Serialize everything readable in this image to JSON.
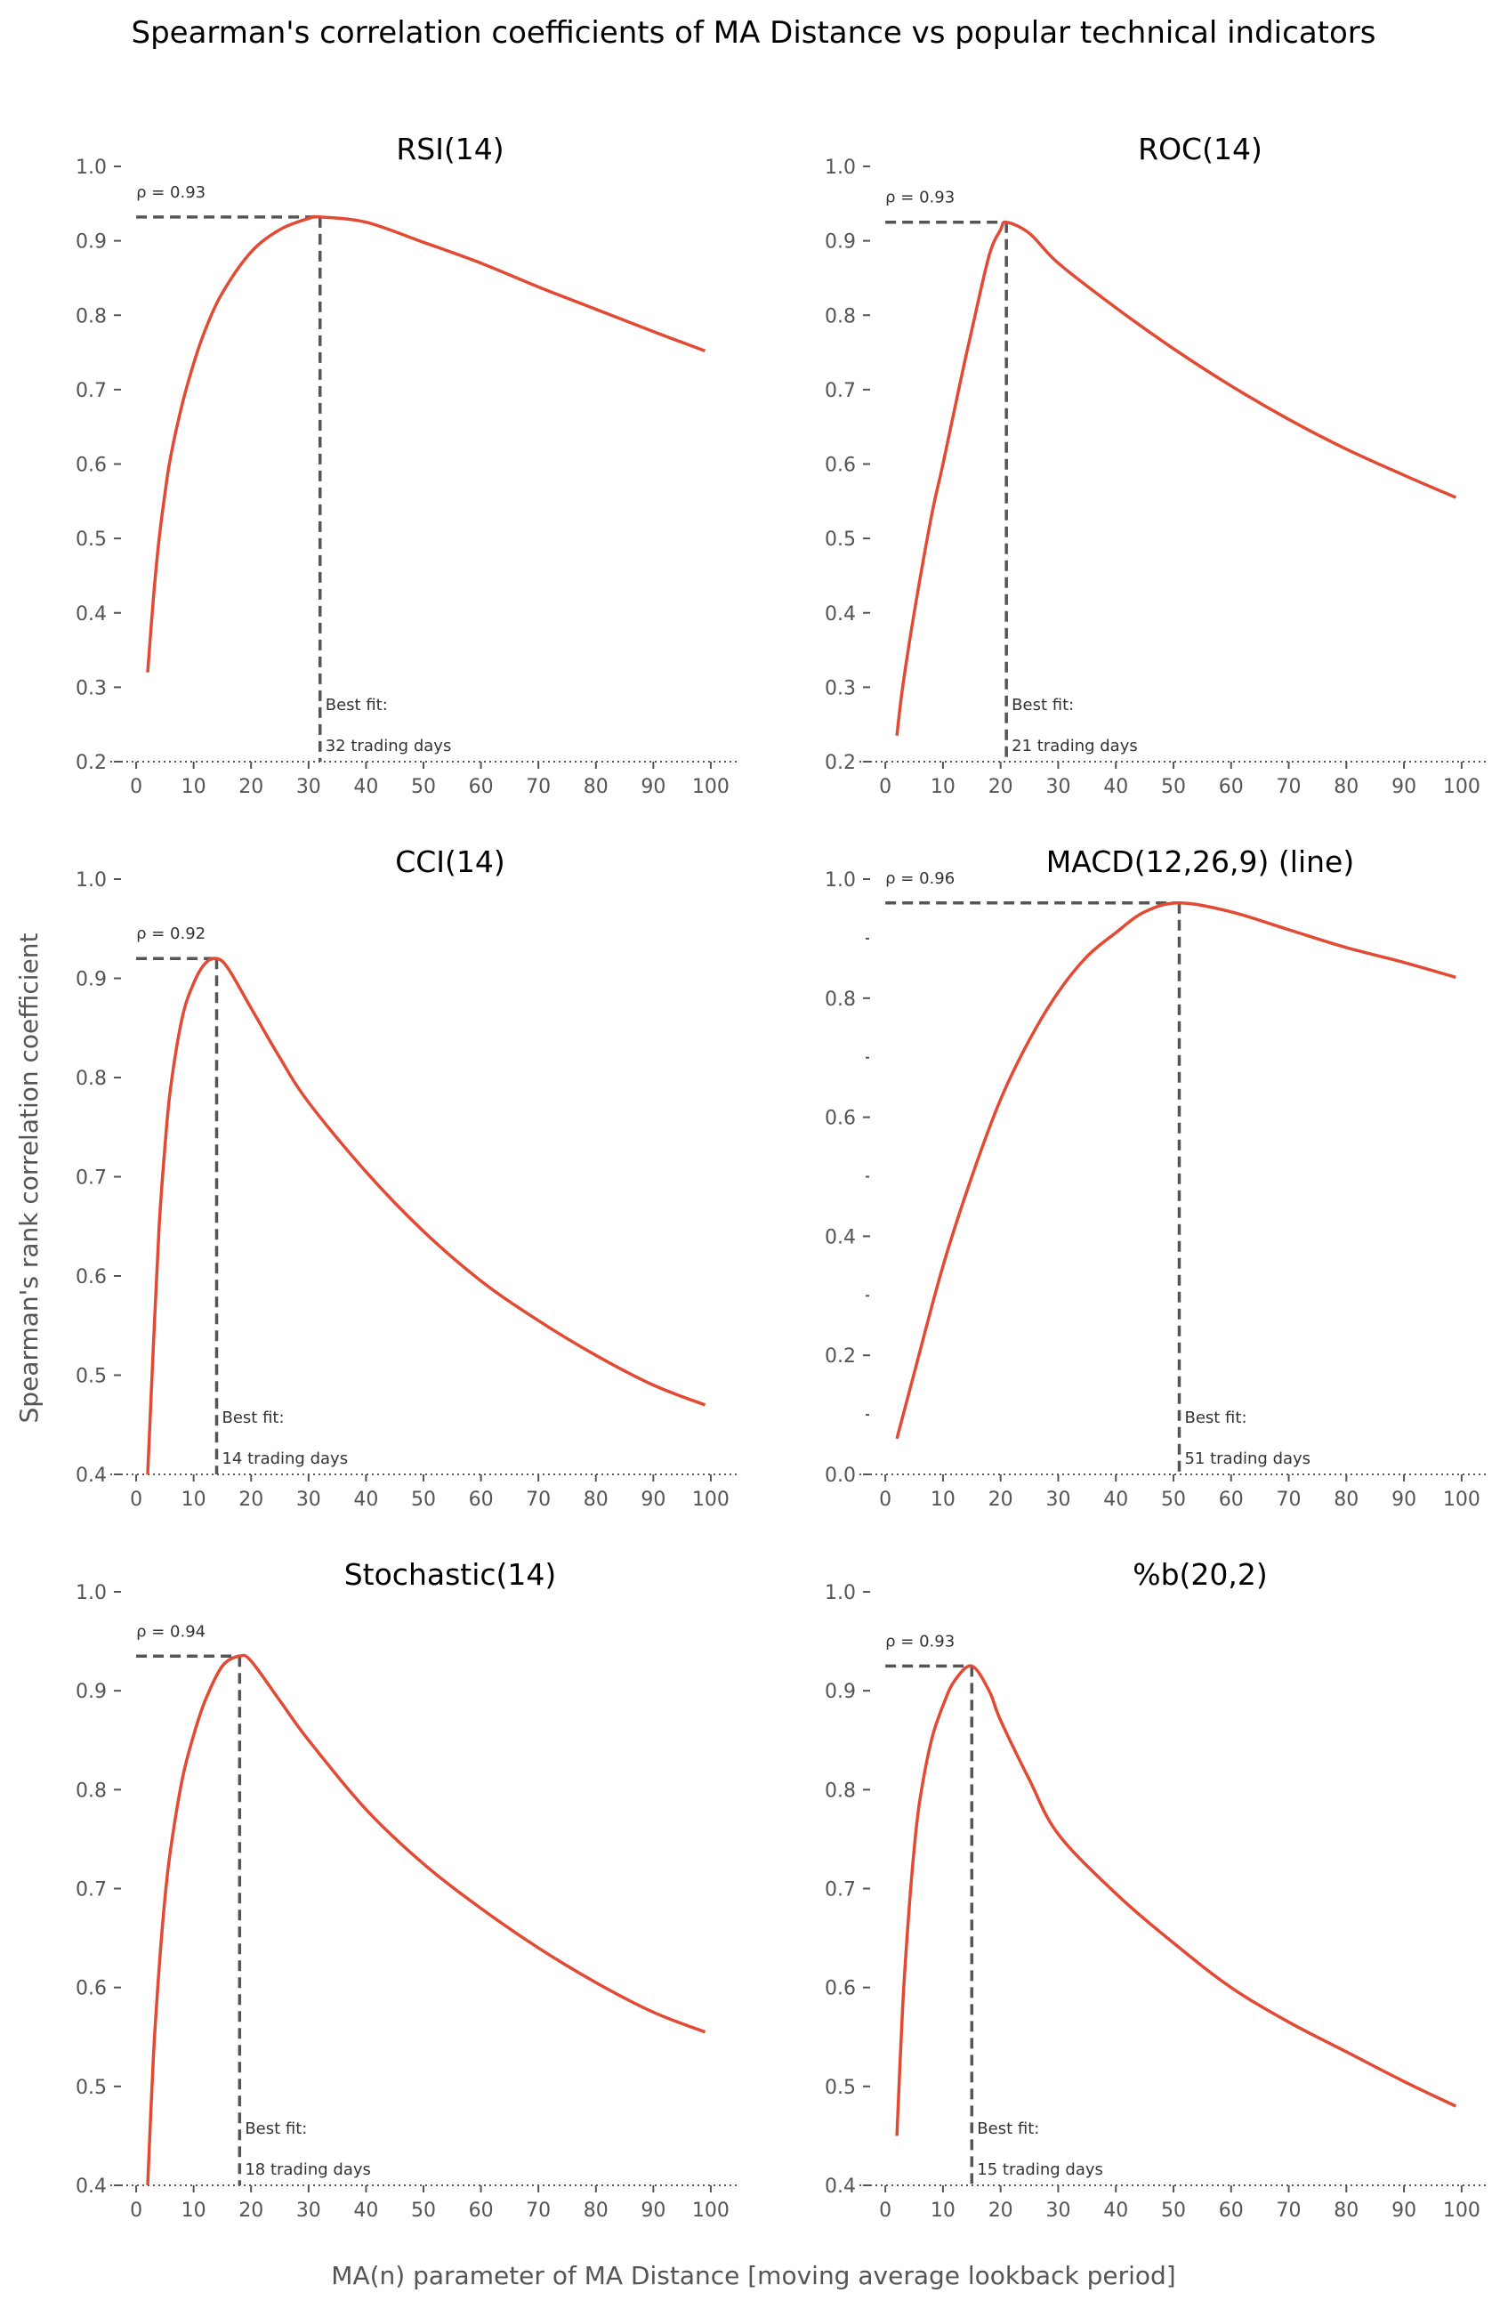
{
  "title": "Spearman's correlation coefficients of MA Distance vs popular technical indicators",
  "xlabel": "MA(n) parameter of MA Distance [moving average lookback period]",
  "ylabel": "Spearman's rank correlation coefficient",
  "colors": {
    "line": "#E24A33",
    "guide": "#555555"
  },
  "chart_data": [
    {
      "type": "line",
      "title": "RSI(14)",
      "xlim": [
        -4.5,
        104.5
      ],
      "ylim": [
        0.2,
        1.0
      ],
      "yticks": [
        "0.2",
        "0.3",
        "0.4",
        "0.5",
        "0.6",
        "0.7",
        "0.8",
        "0.9",
        "1.0"
      ],
      "xticks": [
        "0",
        "10",
        "20",
        "30",
        "40",
        "50",
        "60",
        "70",
        "80",
        "90",
        "100"
      ],
      "x": [
        2,
        3,
        4,
        5,
        6,
        8,
        10,
        12,
        15,
        20,
        25,
        30,
        32,
        40,
        50,
        60,
        70,
        80,
        90,
        99
      ],
      "y": [
        0.32,
        0.42,
        0.5,
        0.56,
        0.61,
        0.68,
        0.735,
        0.78,
        0.83,
        0.885,
        0.915,
        0.93,
        0.932,
        0.925,
        0.898,
        0.87,
        0.838,
        0.808,
        0.778,
        0.752
      ],
      "peak": {
        "x": 32,
        "y": 0.932
      },
      "rho_label": "ρ = 0.93",
      "best_fit_label": "Best fit:",
      "days_label": "32 trading days"
    },
    {
      "type": "line",
      "title": "ROC(14)",
      "xlim": [
        -4.5,
        104.5
      ],
      "ylim": [
        0.2,
        1.0
      ],
      "yticks": [
        "0.2",
        "0.3",
        "0.4",
        "0.5",
        "0.6",
        "0.7",
        "0.8",
        "0.9",
        "1.0"
      ],
      "xticks": [
        "0",
        "10",
        "20",
        "30",
        "40",
        "50",
        "60",
        "70",
        "80",
        "90",
        "100"
      ],
      "x": [
        2,
        3,
        5,
        8,
        10,
        13,
        15,
        18,
        20,
        21,
        25,
        30,
        40,
        50,
        60,
        70,
        80,
        90,
        99
      ],
      "y": [
        0.235,
        0.3,
        0.4,
        0.53,
        0.6,
        0.71,
        0.78,
        0.88,
        0.915,
        0.925,
        0.91,
        0.87,
        0.81,
        0.755,
        0.705,
        0.66,
        0.62,
        0.585,
        0.555
      ],
      "peak": {
        "x": 21,
        "y": 0.925
      },
      "rho_label": "ρ = 0.93",
      "best_fit_label": "Best fit:",
      "days_label": "21 trading days"
    },
    {
      "type": "line",
      "title": "CCI(14)",
      "xlim": [
        -4.5,
        104.5
      ],
      "ylim": [
        0.4,
        1.0
      ],
      "yticks": [
        "0.4",
        "0.5",
        "0.6",
        "0.7",
        "0.8",
        "0.9",
        "1.0"
      ],
      "xticks": [
        "0",
        "10",
        "20",
        "30",
        "40",
        "50",
        "60",
        "70",
        "80",
        "90",
        "100"
      ],
      "x": [
        2,
        3,
        4,
        5,
        6,
        8,
        10,
        12,
        14,
        16,
        20,
        25,
        30,
        40,
        50,
        60,
        70,
        80,
        90,
        99
      ],
      "y": [
        0.4,
        0.53,
        0.65,
        0.73,
        0.79,
        0.86,
        0.895,
        0.915,
        0.92,
        0.91,
        0.87,
        0.82,
        0.775,
        0.705,
        0.645,
        0.595,
        0.555,
        0.52,
        0.49,
        0.47
      ],
      "peak": {
        "x": 14,
        "y": 0.92
      },
      "rho_label": "ρ = 0.92",
      "best_fit_label": "Best fit:",
      "days_label": "14 trading days"
    },
    {
      "type": "line",
      "title": "MACD(12,26,9) (line)",
      "xlim": [
        -4.5,
        104.5
      ],
      "ylim": [
        0.0,
        1.0
      ],
      "yticks": [
        "0.0",
        "0.2",
        "0.4",
        "0.6",
        "0.8",
        "1.0"
      ],
      "minor_yticks": [
        0.1,
        0.3,
        0.5,
        0.7,
        0.9
      ],
      "xticks": [
        "0",
        "10",
        "20",
        "30",
        "40",
        "50",
        "60",
        "70",
        "80",
        "90",
        "100"
      ],
      "x": [
        2,
        5,
        10,
        15,
        20,
        25,
        30,
        35,
        40,
        45,
        51,
        60,
        70,
        80,
        90,
        99
      ],
      "y": [
        0.06,
        0.17,
        0.35,
        0.5,
        0.63,
        0.73,
        0.81,
        0.87,
        0.91,
        0.945,
        0.96,
        0.945,
        0.915,
        0.885,
        0.86,
        0.835
      ],
      "peak": {
        "x": 51,
        "y": 0.96
      },
      "rho_label": "ρ = 0.96",
      "best_fit_label": "Best fit:",
      "days_label": "51 trading days"
    },
    {
      "type": "line",
      "title": "Stochastic(14)",
      "xlim": [
        -4.5,
        104.5
      ],
      "ylim": [
        0.4,
        1.0
      ],
      "yticks": [
        "0.4",
        "0.5",
        "0.6",
        "0.7",
        "0.8",
        "0.9",
        "1.0"
      ],
      "xticks": [
        "0",
        "10",
        "20",
        "30",
        "40",
        "50",
        "60",
        "70",
        "80",
        "90",
        "100"
      ],
      "x": [
        2,
        3,
        4,
        5,
        6,
        8,
        10,
        12,
        15,
        18,
        20,
        25,
        30,
        40,
        50,
        60,
        70,
        80,
        90,
        99
      ],
      "y": [
        0.4,
        0.53,
        0.62,
        0.69,
        0.74,
        0.81,
        0.855,
        0.89,
        0.925,
        0.935,
        0.93,
        0.89,
        0.85,
        0.78,
        0.725,
        0.68,
        0.64,
        0.605,
        0.575,
        0.555
      ],
      "peak": {
        "x": 18,
        "y": 0.935
      },
      "rho_label": "ρ = 0.94",
      "best_fit_label": "Best fit:",
      "days_label": "18 trading days"
    },
    {
      "type": "line",
      "title": "%b(20,2)",
      "xlim": [
        -4.5,
        104.5
      ],
      "ylim": [
        0.4,
        1.0
      ],
      "yticks": [
        "0.4",
        "0.5",
        "0.6",
        "0.7",
        "0.8",
        "0.9",
        "1.0"
      ],
      "xticks": [
        "0",
        "10",
        "20",
        "30",
        "40",
        "50",
        "60",
        "70",
        "80",
        "90",
        "100"
      ],
      "x": [
        2,
        3,
        4,
        5,
        6,
        8,
        10,
        12,
        15,
        18,
        20,
        25,
        30,
        40,
        50,
        60,
        70,
        80,
        90,
        99
      ],
      "y": [
        0.45,
        0.58,
        0.67,
        0.74,
        0.79,
        0.85,
        0.885,
        0.91,
        0.925,
        0.9,
        0.87,
        0.81,
        0.755,
        0.695,
        0.645,
        0.6,
        0.565,
        0.535,
        0.505,
        0.48
      ],
      "peak": {
        "x": 15,
        "y": 0.925
      },
      "rho_label": "ρ = 0.93",
      "best_fit_label": "Best fit:",
      "days_label": "15 trading days"
    }
  ]
}
